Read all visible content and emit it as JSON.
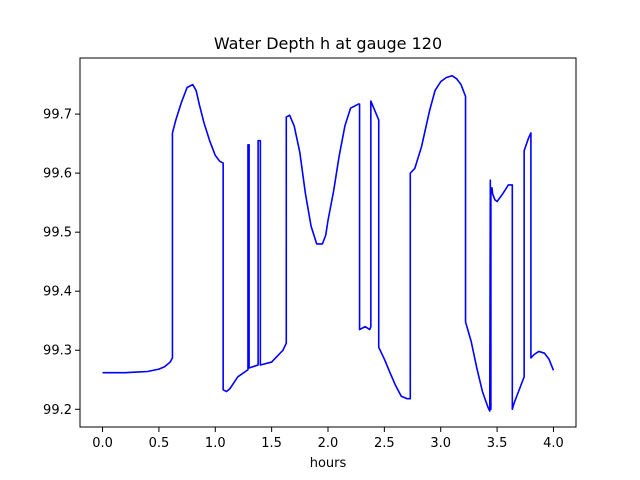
{
  "chart_data": {
    "type": "line",
    "title": "Water Depth h at gauge 120",
    "xlabel": "hours",
    "ylabel": "",
    "xlim": [
      -0.2,
      4.2
    ],
    "ylim": [
      99.17,
      99.795
    ],
    "xticks": [
      0.0,
      0.5,
      1.0,
      1.5,
      2.0,
      2.5,
      3.0,
      3.5,
      4.0
    ],
    "xtick_labels": [
      "0.0",
      "0.5",
      "1.0",
      "1.5",
      "2.0",
      "2.5",
      "3.0",
      "3.5",
      "4.0"
    ],
    "yticks": [
      99.2,
      99.3,
      99.4,
      99.5,
      99.6,
      99.7
    ],
    "ytick_labels": [
      "99.2",
      "99.3",
      "99.4",
      "99.5",
      "99.6",
      "99.7"
    ],
    "grid": false,
    "series": [
      {
        "color": "#0000ff",
        "x": [
          0.0,
          0.2,
          0.3,
          0.4,
          0.5,
          0.55,
          0.6,
          0.62,
          0.62,
          0.65,
          0.7,
          0.75,
          0.8,
          0.83,
          0.86,
          0.9,
          0.95,
          1.0,
          1.04,
          1.07,
          1.07,
          1.1,
          1.13,
          1.2,
          1.29,
          1.29,
          1.3,
          1.3,
          1.38,
          1.38,
          1.4,
          1.4,
          1.5,
          1.6,
          1.63,
          1.63,
          1.66,
          1.7,
          1.75,
          1.8,
          1.85,
          1.9,
          1.95,
          1.98,
          2.0,
          2.05,
          2.1,
          2.15,
          2.2,
          2.27,
          2.28,
          2.28,
          2.33,
          2.37,
          2.38,
          2.38,
          2.45,
          2.45,
          2.5,
          2.55,
          2.6,
          2.65,
          2.7,
          2.73,
          2.73,
          2.77,
          2.83,
          2.9,
          2.95,
          3.0,
          3.05,
          3.1,
          3.14,
          3.18,
          3.22,
          3.22,
          3.27,
          3.32,
          3.37,
          3.42,
          3.435,
          3.44,
          3.445,
          3.445,
          3.455,
          3.46,
          3.48,
          3.5,
          3.55,
          3.6,
          3.635,
          3.635,
          3.65,
          3.7,
          3.74,
          3.74,
          3.78,
          3.8,
          3.8,
          3.83,
          3.87,
          3.92,
          3.96,
          4.0
        ],
        "y": [
          99.262,
          99.262,
          99.263,
          99.264,
          99.268,
          99.272,
          99.28,
          99.287,
          99.668,
          99.69,
          99.72,
          99.745,
          99.75,
          99.74,
          99.715,
          99.685,
          99.655,
          99.63,
          99.62,
          99.617,
          99.233,
          99.23,
          99.235,
          99.255,
          99.267,
          99.648,
          99.648,
          99.27,
          99.275,
          99.655,
          99.655,
          99.275,
          99.28,
          99.3,
          99.312,
          99.695,
          99.698,
          99.68,
          99.635,
          99.565,
          99.51,
          99.48,
          99.48,
          99.495,
          99.52,
          99.57,
          99.63,
          99.68,
          99.71,
          99.717,
          99.717,
          99.335,
          99.34,
          99.335,
          99.34,
          99.722,
          99.69,
          99.305,
          99.285,
          99.262,
          99.24,
          99.222,
          99.218,
          99.218,
          99.6,
          99.608,
          99.645,
          99.705,
          99.74,
          99.755,
          99.762,
          99.765,
          99.76,
          99.75,
          99.73,
          99.348,
          99.315,
          99.27,
          99.23,
          99.203,
          99.197,
          99.588,
          99.2,
          99.575,
          99.575,
          99.565,
          99.555,
          99.552,
          99.565,
          99.58,
          99.58,
          99.2,
          99.21,
          99.235,
          99.255,
          99.638,
          99.66,
          99.668,
          99.287,
          99.293,
          99.298,
          99.295,
          99.285,
          99.266
        ]
      }
    ]
  }
}
